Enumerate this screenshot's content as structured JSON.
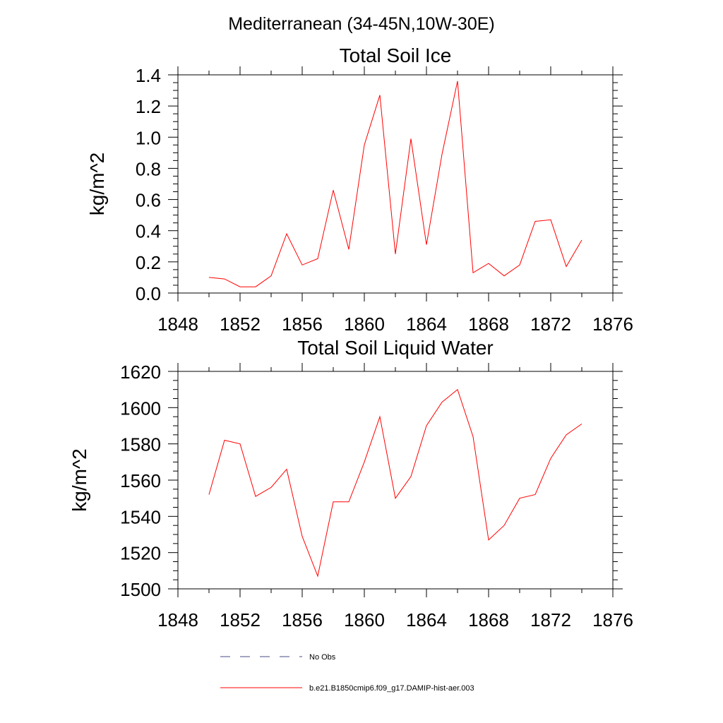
{
  "figure": {
    "suptitle": "Mediterranean (34-45N,10W-30E)"
  },
  "legend": [
    {
      "label": "No Obs",
      "color": "#4a4a8a",
      "dash": "dashed"
    },
    {
      "label": "b.e21.B1850cmip6.f09_g17.DAMIP-hist-aer.003",
      "color": "#ff0000",
      "dash": "solid"
    }
  ],
  "chart_data": [
    {
      "type": "line",
      "title": "Total Soil Ice",
      "ylabel": "kg/m^2",
      "xlabel": "",
      "xlim": [
        1848,
        1876
      ],
      "ylim": [
        0,
        1.4
      ],
      "xticks": [
        1848,
        1852,
        1856,
        1860,
        1864,
        1868,
        1872,
        1876
      ],
      "yticks": [
        0.0,
        0.2,
        0.4,
        0.6,
        0.8,
        1.0,
        1.2,
        1.4
      ],
      "ytick_labels": [
        "0.0",
        "0.2",
        "0.4",
        "0.6",
        "0.8",
        "1.0",
        "1.2",
        "1.4"
      ],
      "xticks_minor": [
        1850,
        1854,
        1858,
        1862,
        1866,
        1870,
        1874
      ],
      "yticks_minor_step": 0.05,
      "series": [
        {
          "name": "b.e21.B1850cmip6.f09_g17.DAMIP-hist-aer.003",
          "color": "#ff0000",
          "x": [
            1850,
            1851,
            1852,
            1853,
            1854,
            1855,
            1856,
            1857,
            1858,
            1859,
            1860,
            1861,
            1862,
            1863,
            1864,
            1865,
            1866,
            1867,
            1868,
            1869,
            1870,
            1871,
            1872,
            1873,
            1874
          ],
          "y": [
            0.1,
            0.09,
            0.04,
            0.04,
            0.11,
            0.38,
            0.18,
            0.22,
            0.66,
            0.28,
            0.95,
            1.27,
            0.25,
            0.99,
            0.31,
            0.89,
            1.36,
            0.13,
            0.19,
            0.11,
            0.18,
            0.46,
            0.47,
            0.17,
            0.34
          ]
        }
      ]
    },
    {
      "type": "line",
      "title": "Total Soil Liquid Water",
      "ylabel": "kg/m^2",
      "xlabel": "",
      "xlim": [
        1848,
        1876
      ],
      "ylim": [
        1500,
        1620
      ],
      "xticks": [
        1848,
        1852,
        1856,
        1860,
        1864,
        1868,
        1872,
        1876
      ],
      "yticks": [
        1500,
        1520,
        1540,
        1560,
        1580,
        1600,
        1620
      ],
      "ytick_labels": [
        "1500",
        "1520",
        "1540",
        "1560",
        "1580",
        "1600",
        "1620"
      ],
      "xticks_minor": [
        1850,
        1854,
        1858,
        1862,
        1866,
        1870,
        1874
      ],
      "yticks_minor_step": 5,
      "series": [
        {
          "name": "b.e21.B1850cmip6.f09_g17.DAMIP-hist-aer.003",
          "color": "#ff0000",
          "x": [
            1850,
            1851,
            1852,
            1853,
            1854,
            1855,
            1856,
            1857,
            1858,
            1859,
            1860,
            1861,
            1862,
            1863,
            1864,
            1865,
            1866,
            1867,
            1868,
            1869,
            1870,
            1871,
            1872,
            1873,
            1874
          ],
          "y": [
            1552,
            1582,
            1580,
            1551,
            1556,
            1566,
            1529,
            1507,
            1548,
            1548,
            1570,
            1595,
            1550,
            1562,
            1590,
            1603,
            1610,
            1584,
            1527,
            1535,
            1550,
            1552,
            1572,
            1585,
            1591
          ]
        }
      ]
    }
  ]
}
